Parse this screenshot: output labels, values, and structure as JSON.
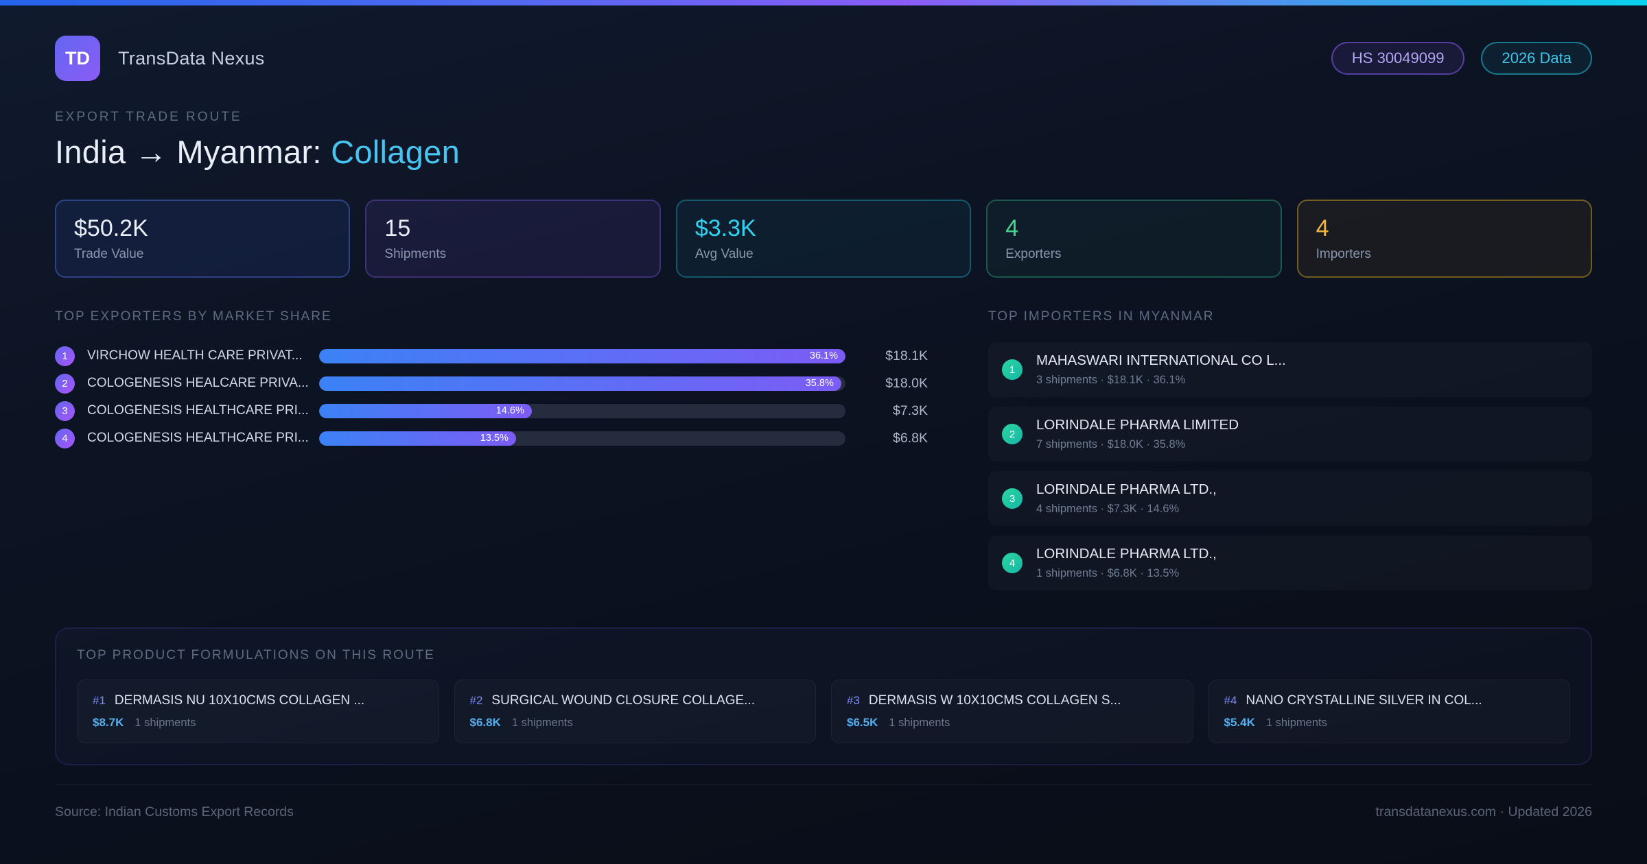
{
  "header": {
    "logo_text": "TD",
    "app_name": "TransData Nexus",
    "badges": {
      "hs_code": "HS 30049099",
      "year": "2026 Data"
    }
  },
  "hero": {
    "eyebrow": "EXPORT TRADE ROUTE",
    "title_main": "India → Myanmar: ",
    "title_accent": "Collagen"
  },
  "colors": {
    "accent_cyan": "#22d3ee",
    "accent_purple": "#8b5cf6",
    "accent_blue": "#3b82f6",
    "accent_green": "#34d399",
    "accent_amber": "#fbbf24"
  },
  "stats": [
    {
      "value": "$50.2K",
      "label": "Trade Value"
    },
    {
      "value": "15",
      "label": "Shipments"
    },
    {
      "value": "$3.3K",
      "label": "Avg Value"
    },
    {
      "value": "4",
      "label": "Exporters"
    },
    {
      "value": "4",
      "label": "Importers"
    }
  ],
  "exporters": {
    "heading": "TOP EXPORTERS BY MARKET SHARE",
    "rows": [
      {
        "rank": "1",
        "name": "VIRCHOW HEALTH CARE PRIVAT...",
        "share_label": "36.1%",
        "share_pct": 36.1,
        "bar_width_pct": 100,
        "value": "$18.1K"
      },
      {
        "rank": "2",
        "name": "COLOGENESIS HEALCARE PRIVA...",
        "share_label": "35.8%",
        "share_pct": 35.8,
        "bar_width_pct": 99.2,
        "value": "$18.0K"
      },
      {
        "rank": "3",
        "name": "COLOGENESIS HEALTHCARE PRI...",
        "share_label": "14.6%",
        "share_pct": 14.6,
        "bar_width_pct": 40.4,
        "value": "$7.3K"
      },
      {
        "rank": "4",
        "name": "COLOGENESIS HEALTHCARE PRI...",
        "share_label": "13.5%",
        "share_pct": 13.5,
        "bar_width_pct": 37.4,
        "value": "$6.8K"
      }
    ]
  },
  "importers": {
    "heading": "TOP IMPORTERS IN MYANMAR",
    "rows": [
      {
        "rank": "1",
        "name": "MAHASWARI INTERNATIONAL CO L...",
        "meta": "3 shipments · $18.1K · 36.1%"
      },
      {
        "rank": "2",
        "name": "LORINDALE PHARMA LIMITED",
        "meta": "7 shipments · $18.0K · 35.8%"
      },
      {
        "rank": "3",
        "name": "LORINDALE PHARMA LTD.,",
        "meta": "4 shipments · $7.3K · 14.6%"
      },
      {
        "rank": "4",
        "name": "LORINDALE PHARMA LTD.,",
        "meta": "1 shipments · $6.8K · 13.5%"
      }
    ]
  },
  "products": {
    "heading": "TOP PRODUCT FORMULATIONS ON THIS ROUTE",
    "cards": [
      {
        "rank": "#1",
        "name": "DERMASIS NU 10X10CMS COLLAGEN ...",
        "value": "$8.7K",
        "shipments": "1 shipments"
      },
      {
        "rank": "#2",
        "name": "SURGICAL WOUND CLOSURE COLLAGE...",
        "value": "$6.8K",
        "shipments": "1 shipments"
      },
      {
        "rank": "#3",
        "name": "DERMASIS W 10X10CMS COLLAGEN S...",
        "value": "$6.5K",
        "shipments": "1 shipments"
      },
      {
        "rank": "#4",
        "name": "NANO CRYSTALLINE SILVER IN COL...",
        "value": "$5.4K",
        "shipments": "1 shipments"
      }
    ]
  },
  "footer": {
    "source": "Source: Indian Customs Export Records",
    "site": "transdatanexus.com · Updated 2026"
  },
  "chart_data": {
    "type": "bar",
    "orientation": "horizontal",
    "title": "TOP EXPORTERS BY MARKET SHARE",
    "categories": [
      "VIRCHOW HEALTH CARE PRIVAT...",
      "COLOGENESIS HEALCARE PRIVA...",
      "COLOGENESIS HEALTHCARE PRI...",
      "COLOGENESIS HEALTHCARE PRI..."
    ],
    "values": [
      36.1,
      35.8,
      14.6,
      13.5
    ],
    "value_labels": [
      "$18.1K",
      "$18.0K",
      "$7.3K",
      "$6.8K"
    ],
    "ylabel": "market share %",
    "xlim": [
      0,
      36.1
    ],
    "legend": false,
    "grid": false
  }
}
